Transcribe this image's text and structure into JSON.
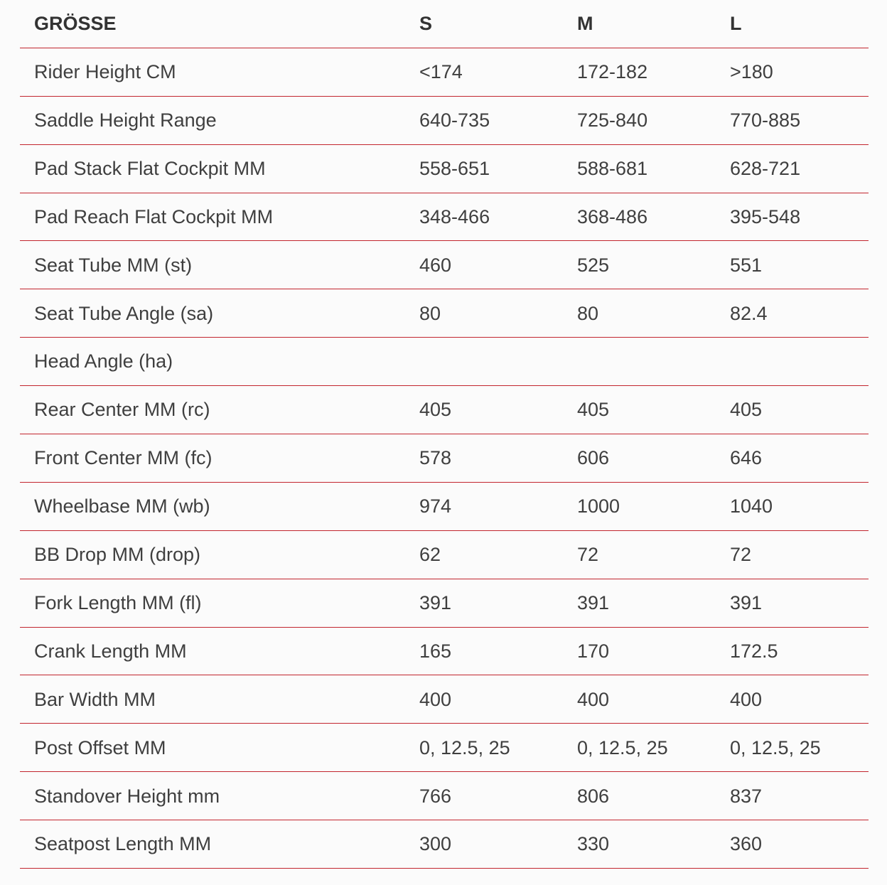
{
  "colors": {
    "background": "#fbfbfb",
    "divider": "#c2252e",
    "text": "#3f3f3f",
    "header_text": "#333333"
  },
  "table": {
    "header": {
      "label": "GRÖSSE",
      "columns": [
        "S",
        "M",
        "L"
      ]
    },
    "rows": [
      {
        "label": "Rider Height CM",
        "values": [
          "<174",
          "172-182",
          ">180"
        ]
      },
      {
        "label": "Saddle Height Range",
        "values": [
          "640-735",
          "725-840",
          "770-885"
        ]
      },
      {
        "label": "Pad Stack Flat Cockpit MM",
        "values": [
          "558-651",
          "588-681",
          "628-721"
        ]
      },
      {
        "label": "Pad Reach Flat Cockpit MM",
        "values": [
          "348-466",
          "368-486",
          "395-548"
        ]
      },
      {
        "label": "Seat Tube MM (st)",
        "values": [
          "460",
          "525",
          "551"
        ]
      },
      {
        "label": "Seat Tube Angle (sa)",
        "values": [
          "80",
          "80",
          "82.4"
        ]
      },
      {
        "label": "Head Angle (ha)",
        "values": [
          "",
          "",
          ""
        ]
      },
      {
        "label": "Rear Center MM (rc)",
        "values": [
          "405",
          "405",
          "405"
        ]
      },
      {
        "label": "Front Center MM (fc)",
        "values": [
          "578",
          "606",
          "646"
        ]
      },
      {
        "label": "Wheelbase MM (wb)",
        "values": [
          "974",
          "1000",
          "1040"
        ]
      },
      {
        "label": "BB Drop MM (drop)",
        "values": [
          "62",
          "72",
          "72"
        ]
      },
      {
        "label": "Fork Length MM (fl)",
        "values": [
          "391",
          "391",
          "391"
        ]
      },
      {
        "label": "Crank Length MM",
        "values": [
          "165",
          "170",
          "172.5"
        ]
      },
      {
        "label": "Bar Width MM",
        "values": [
          "400",
          "400",
          "400"
        ]
      },
      {
        "label": "Post Offset MM",
        "values": [
          "0, 12.5, 25",
          "0, 12.5, 25",
          "0, 12.5, 25"
        ]
      },
      {
        "label": "Standover Height mm",
        "values": [
          "766",
          "806",
          "837"
        ]
      },
      {
        "label": "Seatpost Length MM",
        "values": [
          "300",
          "330",
          "360"
        ]
      }
    ]
  }
}
